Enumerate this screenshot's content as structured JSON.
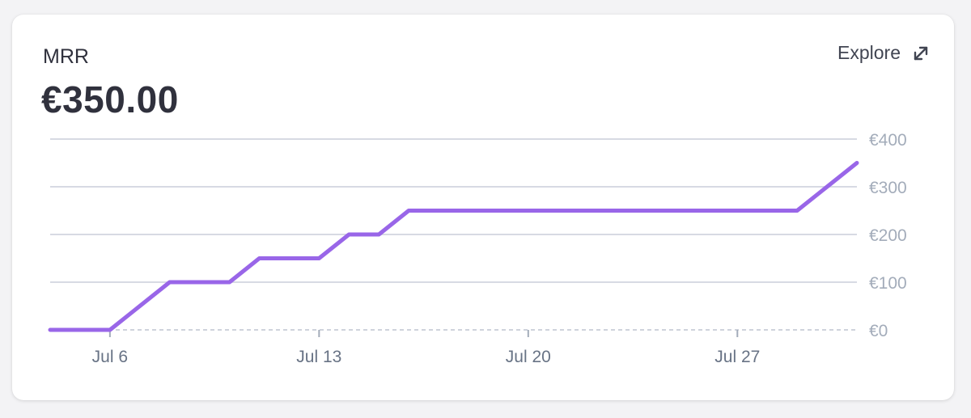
{
  "metric": {
    "label": "MRR",
    "value": "€350.00"
  },
  "explore": {
    "label": "Explore",
    "icon": "expand-arrows-icon"
  },
  "colors": {
    "line": "#9966e8",
    "grid": "#d7dae3",
    "text": "#30313d"
  },
  "chart_data": {
    "type": "line",
    "xlabel": "",
    "ylabel": "",
    "x": [
      "2024-07-04",
      "2024-07-05",
      "2024-07-06",
      "2024-07-07",
      "2024-07-08",
      "2024-07-09",
      "2024-07-10",
      "2024-07-11",
      "2024-07-12",
      "2024-07-13",
      "2024-07-14",
      "2024-07-15",
      "2024-07-16",
      "2024-07-17",
      "2024-07-18",
      "2024-07-19",
      "2024-07-20",
      "2024-07-21",
      "2024-07-22",
      "2024-07-23",
      "2024-07-24",
      "2024-07-25",
      "2024-07-26",
      "2024-07-27",
      "2024-07-28",
      "2024-07-29",
      "2024-07-30",
      "2024-07-31"
    ],
    "series": [
      {
        "values": [
          0,
          0,
          0,
          50,
          100,
          100,
          100,
          150,
          150,
          150,
          200,
          200,
          250,
          250,
          250,
          250,
          250,
          250,
          250,
          250,
          250,
          250,
          250,
          250,
          250,
          250,
          300,
          350
        ]
      }
    ],
    "ylim": [
      0,
      400
    ],
    "y_ticks": [
      0,
      100,
      200,
      300,
      400
    ],
    "y_tick_labels": [
      "€0",
      "€100",
      "€200",
      "€300",
      "€400"
    ],
    "x_ticks": [
      "2024-07-06",
      "2024-07-13",
      "2024-07-20",
      "2024-07-27"
    ],
    "x_tick_labels": [
      "Jul 6",
      "Jul 13",
      "Jul 20",
      "Jul 27"
    ],
    "grid": true,
    "legend": "none"
  }
}
